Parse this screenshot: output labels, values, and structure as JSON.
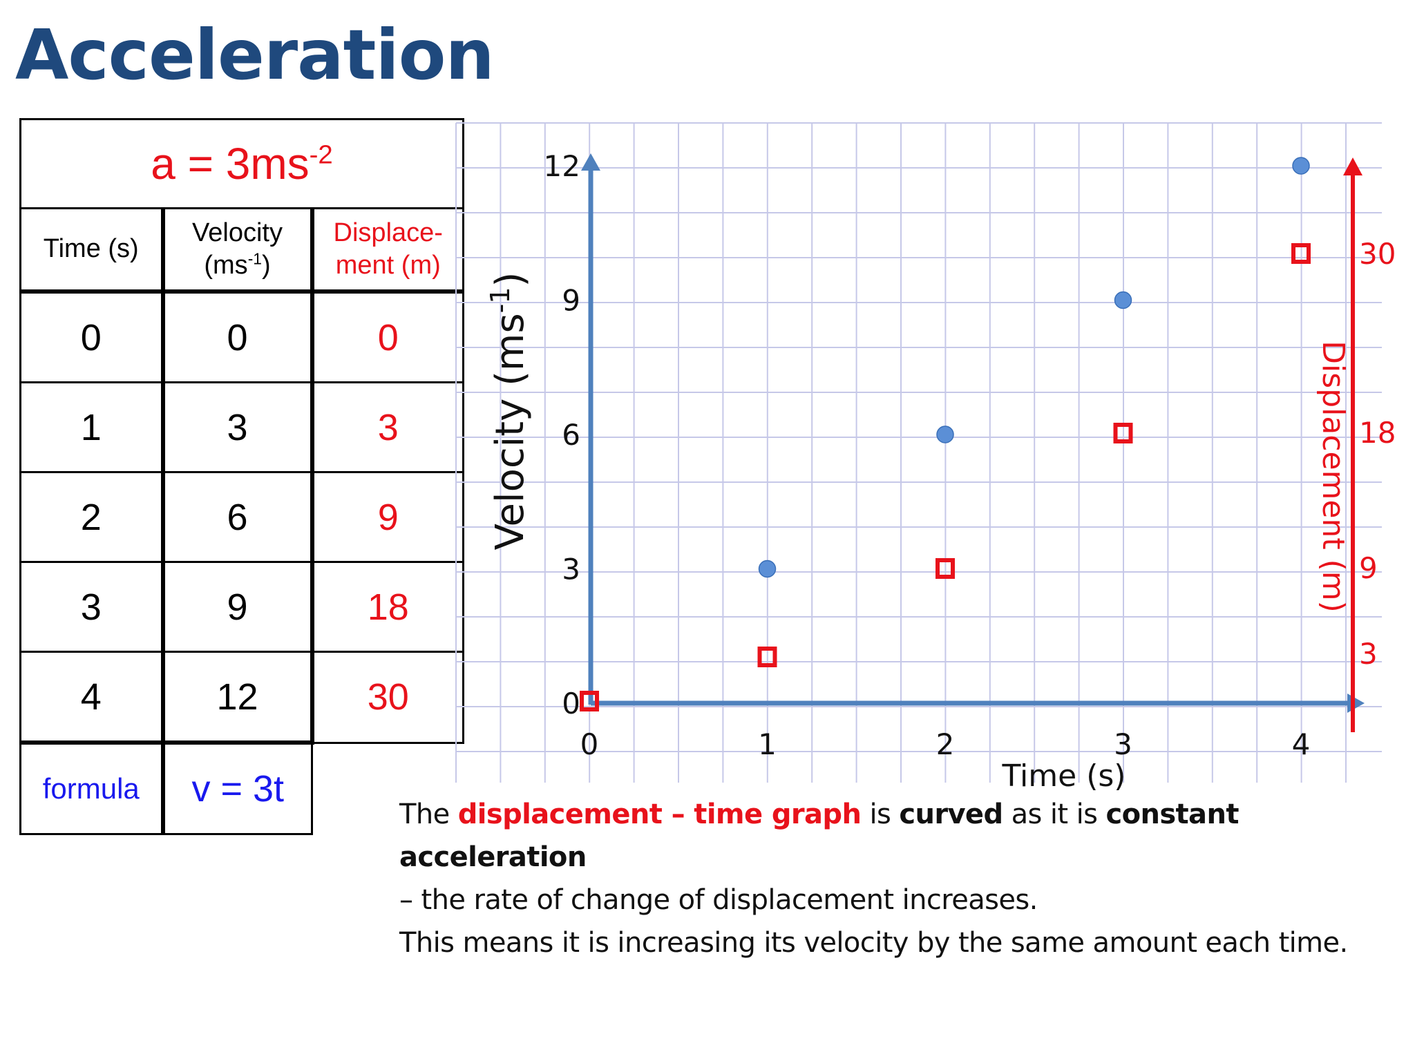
{
  "slide_title": "Acceleration",
  "table": {
    "acceleration": {
      "prefix": "a = 3ms",
      "exponent": "-2"
    },
    "headers": {
      "time": "Time (s)",
      "velocity_line1": "Velocity",
      "velocity_unit_prefix": "(ms",
      "velocity_unit_exponent": "-1",
      "velocity_unit_suffix": ")",
      "displacement_line1": "Displace-",
      "displacement_line2": "ment (m)"
    },
    "rows": [
      {
        "time": "0",
        "velocity": "0",
        "displacement": "0"
      },
      {
        "time": "1",
        "velocity": "3",
        "displacement": "3"
      },
      {
        "time": "2",
        "velocity": "6",
        "displacement": "9"
      },
      {
        "time": "3",
        "velocity": "9",
        "displacement": "18"
      },
      {
        "time": "4",
        "velocity": "12",
        "displacement": "30"
      }
    ],
    "formula_label": "formula",
    "formula_value": "v = 3t"
  },
  "chart_data": {
    "type": "scatter",
    "xlabel": "Time (s)",
    "ylabel_left": {
      "prefix": "Velocity (ms",
      "exponent": "-1",
      "suffix": ")"
    },
    "ylabel_right": "Displacement (m)",
    "x_ticks": [
      "0",
      "1",
      "2",
      "3",
      "4"
    ],
    "y_left_ticks": [
      "0",
      "3",
      "6",
      "9",
      "12"
    ],
    "y_right_ticks": [
      "3",
      "9",
      "18",
      "30"
    ],
    "xlim": [
      0,
      4
    ],
    "y_left_lim": [
      0,
      12
    ],
    "grid": true,
    "series": [
      {
        "axis": "left",
        "marker": "circle",
        "color": "#5b8fd6",
        "x": [
          1,
          2,
          3,
          4
        ],
        "y": [
          3,
          6,
          9,
          12
        ]
      },
      {
        "axis": "right",
        "marker": "square",
        "color": "#e8121b",
        "x": [
          0,
          1,
          2,
          3,
          4
        ],
        "y": [
          0,
          3,
          9,
          18,
          30
        ]
      }
    ],
    "colors": {
      "left_axis": "#4f81bd",
      "right_axis": "#e8121b",
      "grid": "#c6c8e8"
    }
  },
  "caption": {
    "l1_a": "The ",
    "l1_b": "displacement – time graph",
    "l1_c": " is ",
    "l1_d": "curved",
    "l1_e": " as it is ",
    "l1_f": "constant acceleration",
    "line2": "– the rate of change of displacement increases.",
    "line3": "This means it is increasing its velocity by the same amount each time."
  }
}
